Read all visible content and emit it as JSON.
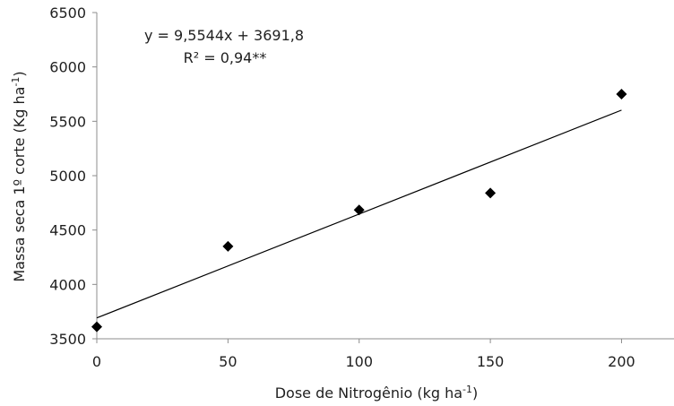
{
  "chart_data": {
    "type": "scatter",
    "title": "",
    "xlabel": {
      "text": "Dose de Nitrogênio (kg ha",
      "superscript": "-1",
      "suffix": ")"
    },
    "ylabel": {
      "text": "Massa seca 1º corte (Kg ha",
      "superscript": "-1",
      "suffix": ")"
    },
    "xlim": [
      0,
      220
    ],
    "ylim": [
      3500,
      6500
    ],
    "xticks": [
      "0",
      "50",
      "100",
      "150",
      "200"
    ],
    "yticks": [
      "3500",
      "4000",
      "4500",
      "5000",
      "5500",
      "6000",
      "6500"
    ],
    "x": [
      0,
      50,
      100,
      150,
      200
    ],
    "y": [
      3610,
      4350,
      4685,
      4840,
      5750
    ],
    "series": [
      {
        "name": "",
        "marker": "diamond",
        "color": "#000000",
        "x": [
          0,
          50,
          100,
          150,
          200
        ],
        "y": [
          3610,
          4350,
          4685,
          4840,
          5750
        ]
      }
    ],
    "trendline": {
      "slope": 9.5544,
      "intercept": 3691.8,
      "x_range": [
        0,
        200
      ],
      "color": "#000000"
    },
    "annotations": [
      "y = 9,5544x + 3691,8",
      "R² = 0,94**"
    ],
    "grid": false,
    "legend": "none"
  }
}
